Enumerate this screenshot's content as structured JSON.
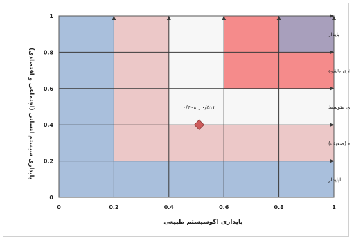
{
  "chart_data": {
    "type": "scatter",
    "xlabel": "پایداری اکوسیستم طبیعی",
    "ylabel": "پایداری سیستم انسانی (اجتماعی و اقتصادی)",
    "xlim": [
      0,
      1
    ],
    "ylim": [
      0,
      1
    ],
    "x_ticks": [
      "0",
      "0.2",
      "0.4",
      "0.6",
      "0.8",
      "1"
    ],
    "y_ticks": [
      "0",
      "0.2",
      "0.4",
      "0.6",
      "0.8",
      "1"
    ],
    "grid": true,
    "zones": [
      {
        "label": "ناپایدار",
        "color": "#a9bfdc"
      },
      {
        "label": "پایداری بالقوه (ضعیف)",
        "color": "#ecc8c8"
      },
      {
        "label": "پایداری متوسط",
        "color": "#f7f7f7"
      },
      {
        "label": "پایداری بالقوه",
        "color": "#f58b8b"
      },
      {
        "label": "پایدار",
        "color": "#a89fbc"
      }
    ],
    "points": [
      {
        "x": 0.51,
        "y": 0.4,
        "label": "۰/۴۰۸ ; ۰/۵۱۲",
        "color": "#cd5c5c"
      }
    ]
  }
}
